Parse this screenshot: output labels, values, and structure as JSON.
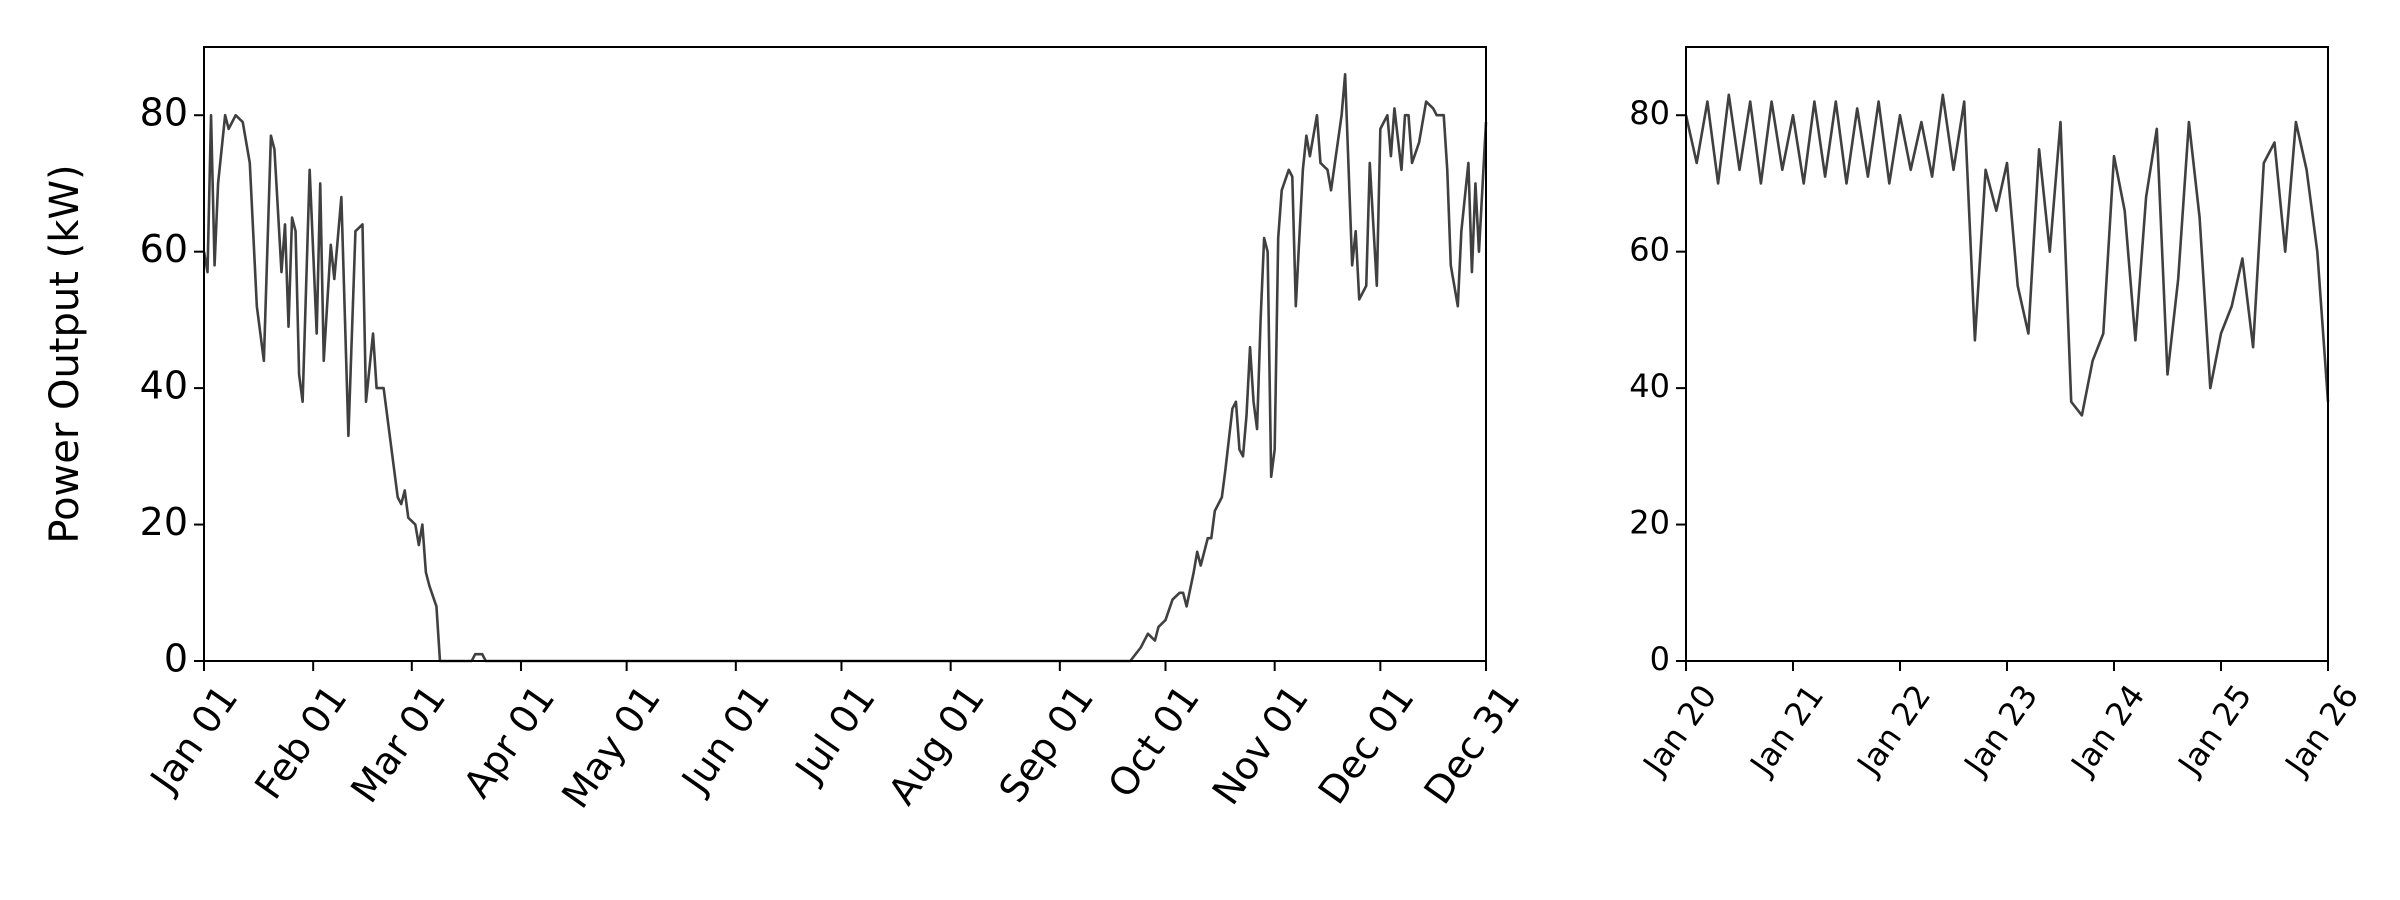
{
  "chart_data": [
    {
      "type": "line",
      "ylabel": "Power Output (kW)",
      "x": [
        0,
        1,
        2,
        3,
        4,
        6,
        7,
        9,
        11,
        13,
        15,
        17,
        19,
        20,
        22,
        23,
        24,
        25,
        26,
        27,
        28,
        30,
        32,
        33,
        34,
        36,
        37,
        39,
        41,
        43,
        45,
        46,
        48,
        49,
        51,
        53,
        55,
        56,
        57,
        58,
        60,
        61,
        62,
        63,
        64,
        66,
        67,
        76,
        77,
        79,
        80,
        263,
        266,
        268,
        270,
        271,
        273,
        275,
        277,
        278,
        279,
        281,
        282,
        283,
        285,
        286,
        287,
        289,
        290,
        292,
        293,
        294,
        295,
        296,
        297,
        298,
        299,
        300,
        301,
        302,
        303,
        304,
        305,
        306,
        308,
        309,
        310,
        312,
        313,
        314,
        316,
        317,
        319,
        320,
        323,
        324,
        326,
        327,
        328,
        330,
        331,
        333,
        334,
        336,
        337,
        338,
        340,
        341,
        342,
        343,
        345,
        347,
        349,
        350,
        352,
        353,
        354,
        356,
        357,
        359,
        360,
        361,
        362,
        364
      ],
      "series": [
        {
          "color": "#404040",
          "values": [
            60,
            57,
            80,
            58,
            70,
            80,
            78,
            80,
            79,
            73,
            52,
            44,
            77,
            75,
            57,
            64,
            49,
            65,
            63,
            42,
            38,
            72,
            48,
            70,
            44,
            61,
            56,
            68,
            33,
            63,
            64,
            38,
            48,
            40,
            40,
            32,
            24,
            23,
            25,
            21,
            20,
            17,
            20,
            13,
            11,
            8,
            0,
            0,
            1,
            1,
            0,
            0,
            2,
            4,
            3,
            5,
            6,
            9,
            10,
            10,
            8,
            13,
            16,
            14,
            18,
            18,
            22,
            24,
            28,
            37,
            38,
            31,
            30,
            36,
            46,
            38,
            34,
            50,
            62,
            60,
            27,
            31,
            62,
            69,
            72,
            71,
            52,
            72,
            77,
            74,
            80,
            73,
            72,
            69,
            80,
            86,
            58,
            63,
            53,
            55,
            73,
            55,
            78,
            80,
            74,
            81,
            72,
            80,
            80,
            73,
            76,
            82,
            81,
            80,
            80,
            72,
            58,
            52,
            63,
            73,
            57,
            70,
            60,
            79
          ]
        }
      ],
      "xlim": [
        0,
        364
      ],
      "xticks": [
        {
          "value": 0,
          "label": "Jan 01"
        },
        {
          "value": 31,
          "label": "Feb 01"
        },
        {
          "value": 59,
          "label": "Mar 01"
        },
        {
          "value": 90,
          "label": "Apr 01"
        },
        {
          "value": 120,
          "label": "May 01"
        },
        {
          "value": 151,
          "label": "Jun 01"
        },
        {
          "value": 181,
          "label": "Jul 01"
        },
        {
          "value": 212,
          "label": "Aug 01"
        },
        {
          "value": 243,
          "label": "Sep 01"
        },
        {
          "value": 273,
          "label": "Oct 01"
        },
        {
          "value": 304,
          "label": "Nov 01"
        },
        {
          "value": 334,
          "label": "Dec 01"
        },
        {
          "value": 364,
          "label": "Dec 31"
        }
      ],
      "ylim": [
        0,
        90
      ],
      "yticks": [
        0,
        20,
        40,
        60,
        80
      ]
    },
    {
      "type": "line",
      "x": [
        0,
        0.1,
        0.2,
        0.3,
        0.4,
        0.5,
        0.6,
        0.7,
        0.8,
        0.9,
        1,
        1.1,
        1.2,
        1.3,
        1.4,
        1.5,
        1.6,
        1.7,
        1.8,
        1.9,
        2,
        2.1,
        2.2,
        2.3,
        2.4,
        2.5,
        2.6,
        2.7,
        2.8,
        2.9,
        3,
        3.1,
        3.2,
        3.3,
        3.4,
        3.5,
        3.6,
        3.7,
        3.8,
        3.9,
        4,
        4.1,
        4.2,
        4.3,
        4.4,
        4.5,
        4.6,
        4.7,
        4.8,
        4.9,
        5,
        5.1,
        5.2,
        5.3,
        5.4,
        5.5,
        5.6,
        5.7,
        5.8,
        5.9,
        6
      ],
      "series": [
        {
          "color": "#404040",
          "values": [
            80,
            73,
            82,
            70,
            83,
            72,
            82,
            70,
            82,
            72,
            80,
            70,
            82,
            71,
            82,
            70,
            81,
            71,
            82,
            70,
            80,
            72,
            79,
            71,
            83,
            72,
            82,
            47,
            72,
            66,
            73,
            55,
            48,
            75,
            60,
            79,
            38,
            36,
            44,
            48,
            74,
            66,
            47,
            68,
            78,
            42,
            56,
            79,
            65,
            40,
            48,
            52,
            59,
            46,
            73,
            76,
            60,
            79,
            72,
            60,
            38
          ]
        }
      ],
      "xlim": [
        0,
        6
      ],
      "xticks": [
        {
          "value": 0,
          "label": "Jan 20"
        },
        {
          "value": 1,
          "label": "Jan 21"
        },
        {
          "value": 2,
          "label": "Jan 22"
        },
        {
          "value": 3,
          "label": "Jan 23"
        },
        {
          "value": 4,
          "label": "Jan 24"
        },
        {
          "value": 5,
          "label": "Jan 25"
        },
        {
          "value": 6,
          "label": "Jan 26"
        }
      ],
      "ylim": [
        0,
        90
      ],
      "yticks": [
        0,
        20,
        40,
        60,
        80
      ]
    }
  ]
}
